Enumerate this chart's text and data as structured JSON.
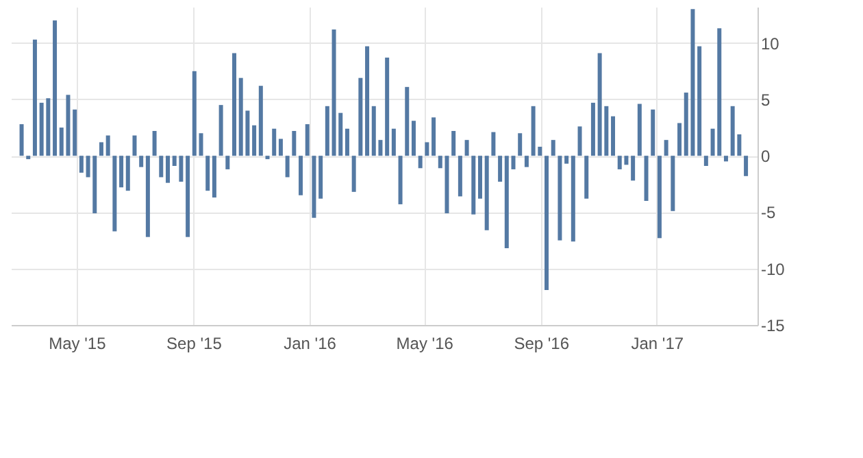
{
  "chart_data": {
    "type": "bar",
    "x": [
      "2015-03-04",
      "2015-03-11",
      "2015-03-18",
      "2015-03-25",
      "2015-04-01",
      "2015-04-08",
      "2015-04-15",
      "2015-04-22",
      "2015-04-29",
      "2015-05-06",
      "2015-05-13",
      "2015-05-20",
      "2015-05-27",
      "2015-06-03",
      "2015-06-10",
      "2015-06-17",
      "2015-06-24",
      "2015-07-01",
      "2015-07-08",
      "2015-07-15",
      "2015-07-22",
      "2015-07-29",
      "2015-08-05",
      "2015-08-12",
      "2015-08-19",
      "2015-08-26",
      "2015-09-02",
      "2015-09-09",
      "2015-09-16",
      "2015-09-23",
      "2015-09-30",
      "2015-10-07",
      "2015-10-14",
      "2015-10-21",
      "2015-10-28",
      "2015-11-04",
      "2015-11-11",
      "2015-11-18",
      "2015-11-25",
      "2015-12-02",
      "2015-12-09",
      "2015-12-16",
      "2015-12-23",
      "2015-12-30",
      "2016-01-06",
      "2016-01-13",
      "2016-01-20",
      "2016-01-27",
      "2016-02-03",
      "2016-02-10",
      "2016-02-17",
      "2016-02-24",
      "2016-03-02",
      "2016-03-09",
      "2016-03-16",
      "2016-03-23",
      "2016-03-30",
      "2016-04-06",
      "2016-04-13",
      "2016-04-20",
      "2016-04-27",
      "2016-05-04",
      "2016-05-11",
      "2016-05-18",
      "2016-05-25",
      "2016-06-01",
      "2016-06-08",
      "2016-06-15",
      "2016-06-22",
      "2016-06-29",
      "2016-07-06",
      "2016-07-13",
      "2016-07-20",
      "2016-07-27",
      "2016-08-03",
      "2016-08-10",
      "2016-08-17",
      "2016-08-24",
      "2016-08-31",
      "2016-09-07",
      "2016-09-14",
      "2016-09-21",
      "2016-09-28",
      "2016-10-05",
      "2016-10-12",
      "2016-10-19",
      "2016-10-26",
      "2016-11-02",
      "2016-11-09",
      "2016-11-16",
      "2016-11-23",
      "2016-11-30",
      "2016-12-07",
      "2016-12-14",
      "2016-12-21",
      "2016-12-28",
      "2017-01-04",
      "2017-01-11",
      "2017-01-18",
      "2017-01-25",
      "2017-02-01",
      "2017-02-08",
      "2017-02-15",
      "2017-02-22",
      "2017-03-01",
      "2017-03-08",
      "2017-03-15",
      "2017-03-22",
      "2017-03-29",
      "2017-04-05"
    ],
    "series": [
      {
        "color": "#5479a3",
        "values": [
          2.8,
          -0.3,
          10.3,
          4.7,
          5.1,
          12.0,
          2.5,
          5.4,
          4.1,
          -1.5,
          -1.9,
          -5.1,
          1.2,
          1.8,
          -6.7,
          -2.8,
          -3.1,
          1.8,
          -1.0,
          -7.2,
          2.2,
          -1.9,
          -2.4,
          -0.9,
          -2.3,
          -7.2,
          7.5,
          2.0,
          -3.1,
          -3.7,
          4.5,
          -1.2,
          9.1,
          6.9,
          4.0,
          2.7,
          6.2,
          -0.3,
          2.4,
          1.5,
          -1.9,
          2.2,
          -3.5,
          2.8,
          -5.5,
          -3.8,
          4.4,
          11.2,
          3.8,
          2.4,
          -3.2,
          6.9,
          9.7,
          4.4,
          1.4,
          8.7,
          2.4,
          -4.3,
          6.1,
          3.1,
          -1.1,
          1.2,
          3.4,
          -1.1,
          -5.1,
          2.2,
          -3.6,
          1.4,
          -5.2,
          -3.8,
          -6.6,
          2.1,
          -2.3,
          -8.2,
          -1.2,
          2.0,
          -1.0,
          4.4,
          0.8,
          -11.9,
          1.4,
          -7.5,
          -0.7,
          -7.6,
          2.6,
          -3.8,
          4.7,
          9.1,
          4.4,
          3.5,
          -1.2,
          -0.8,
          -2.2,
          4.6,
          -4.0,
          4.1,
          -7.3,
          1.4,
          -4.9,
          2.9,
          5.6,
          13.0,
          9.7,
          -0.9,
          2.4,
          11.3,
          -0.5,
          4.4,
          1.9,
          -1.8
        ]
      }
    ],
    "xlim": [
      "2015-02-28",
      "2017-04-10"
    ],
    "xticks": [
      {
        "value": "2015-05-01",
        "label": "May '15"
      },
      {
        "value": "2015-09-01",
        "label": "Sep '15"
      },
      {
        "value": "2016-01-01",
        "label": "Jan '16"
      },
      {
        "value": "2016-05-01",
        "label": "May '16"
      },
      {
        "value": "2016-09-01",
        "label": "Sep '16"
      },
      {
        "value": "2017-01-01",
        "label": "Jan '17"
      }
    ],
    "ylim": [
      -15,
      13.2
    ],
    "yticks": [
      -15,
      -10,
      -5,
      0,
      5,
      10
    ],
    "grid": true
  }
}
